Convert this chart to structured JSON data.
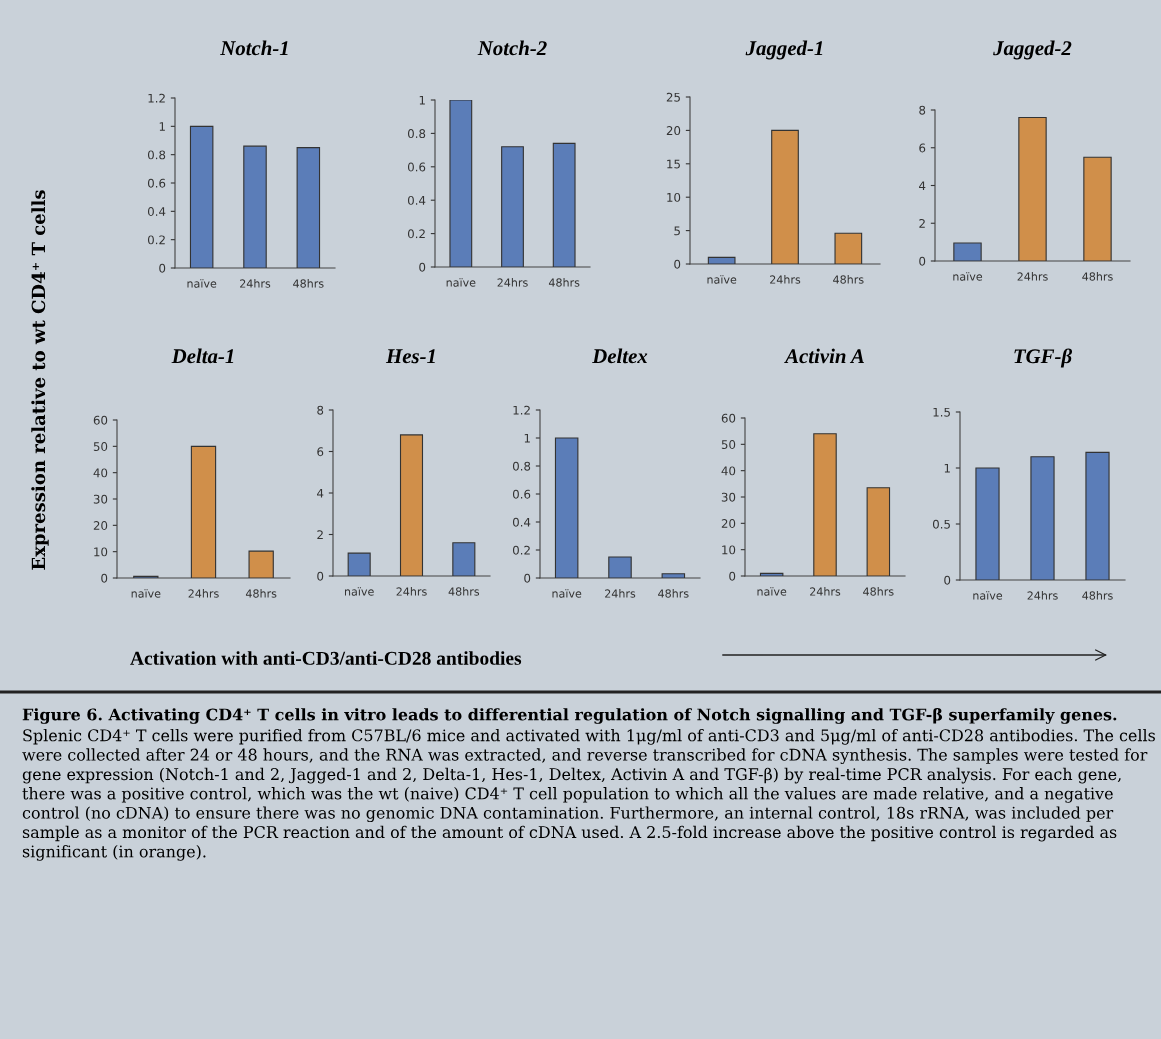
{
  "chart_data": [
    {
      "type": "bar",
      "title": "Notch-1",
      "ylabel": "Expression relative to wt CD4⁺ T cells",
      "categories": [
        "naïve",
        "24hrs",
        "48hrs"
      ],
      "values": [
        1,
        0.86,
        0.85
      ],
      "colors": [
        "#5b7db8",
        "#5b7db8",
        "#5b7db8"
      ],
      "ylim": [
        0,
        1.2
      ],
      "yticks": [
        0,
        0.2,
        0.4,
        0.6,
        0.8,
        1,
        1.2
      ]
    },
    {
      "type": "bar",
      "title": "Notch-2",
      "categories": [
        "naïve",
        "24hrs",
        "48hrs"
      ],
      "values": [
        1,
        0.72,
        0.74
      ],
      "colors": [
        "#5b7db8",
        "#5b7db8",
        "#5b7db8"
      ],
      "ylim": [
        0,
        1
      ],
      "yticks": [
        0,
        0.2,
        0.4,
        0.6,
        0.8,
        1
      ]
    },
    {
      "type": "bar",
      "title": "Jagged-1",
      "categories": [
        "naïve",
        "24hrs",
        "48hrs"
      ],
      "values": [
        1,
        20,
        4.6
      ],
      "colors": [
        "#5b7db8",
        "#d08f4a",
        "#d08f4a"
      ],
      "ylim": [
        0,
        25
      ],
      "yticks": [
        0,
        5,
        10,
        15,
        20,
        25
      ]
    },
    {
      "type": "bar",
      "title": "Jagged-2",
      "categories": [
        "naïve",
        "24hrs",
        "48hrs"
      ],
      "values": [
        0.95,
        7.6,
        5.5
      ],
      "colors": [
        "#5b7db8",
        "#d08f4a",
        "#d08f4a"
      ],
      "ylim": [
        0,
        8
      ],
      "yticks": [
        0,
        2,
        4,
        6,
        8
      ]
    },
    {
      "type": "bar",
      "title": "Delta-1",
      "categories": [
        "naïve",
        "24hrs",
        "48hrs"
      ],
      "values": [
        0.6,
        50,
        10.2
      ],
      "colors": [
        "#5b7db8",
        "#d08f4a",
        "#d08f4a"
      ],
      "ylim": [
        0,
        60
      ],
      "yticks": [
        0,
        10,
        20,
        30,
        40,
        50,
        60
      ]
    },
    {
      "type": "bar",
      "title": "Hes-1",
      "categories": [
        "naïve",
        "24hrs",
        "48hrs"
      ],
      "values": [
        1.1,
        6.8,
        1.6
      ],
      "colors": [
        "#5b7db8",
        "#d08f4a",
        "#5b7db8"
      ],
      "ylim": [
        0,
        8
      ],
      "yticks": [
        0,
        2,
        4,
        6,
        8
      ]
    },
    {
      "type": "bar",
      "title": "Deltex",
      "categories": [
        "naïve",
        "24hrs",
        "48hrs"
      ],
      "values": [
        1,
        0.15,
        0.03
      ],
      "colors": [
        "#5b7db8",
        "#5b7db8",
        "#5b7db8"
      ],
      "ylim": [
        0,
        1.2
      ],
      "yticks": [
        0,
        0.2,
        0.4,
        0.6,
        0.8,
        1,
        1.2
      ]
    },
    {
      "type": "bar",
      "title": "Activin A",
      "categories": [
        "naïve",
        "24hrs",
        "48hrs"
      ],
      "values": [
        1,
        54,
        33.5
      ],
      "colors": [
        "#5b7db8",
        "#d08f4a",
        "#d08f4a"
      ],
      "ylim": [
        0,
        60
      ],
      "yticks": [
        0,
        10,
        20,
        30,
        40,
        50,
        60
      ]
    },
    {
      "type": "bar",
      "title": "TGF-β",
      "categories": [
        "naïve",
        "24hrs",
        "48hrs"
      ],
      "values": [
        1,
        1.1,
        1.14
      ],
      "colors": [
        "#5b7db8",
        "#5b7db8",
        "#5b7db8"
      ],
      "ylim": [
        0,
        1.5
      ],
      "yticks": [
        0,
        0.5,
        1,
        1.5
      ],
      "annotations": [
        "Activation with anti-CD3/anti-CD28 antibodies",
        "Figure 6. Activating CD4⁺ T cells in vitro leads to differential regulation of Notch signalling and TGF-β superfamily genes.",
        "Splenic CD4⁺ T cells were purified from C57BL/6 mice and activated with 1μg/ml of anti-CD3 and 5μg/ml of anti-CD28 antibodies. The cells were collected after 24 or 48 hours, and the RNA was extracted, and reverse transcribed for cDNA synthesis. The samples were tested for gene expression (Notch-1 and 2, Jagged-1 and 2, Delta-1, Hes-1, Deltex, Activin A and TGF-β) by real-time PCR analysis. For each gene, there was a positive control, which was the wt (naive) CD4⁺ T cell population to which all the values are made relative, and a negative control (no cDNA) to ensure there was no genomic DNA contamination. Furthermore, an internal control, 18s rRNA, was included per sample as a monitor of the PCR reaction and of the amount of cDNA used. A 2.5-fold increase above the positive control is regarded as significant (in orange)."
      ]
    }
  ]
}
